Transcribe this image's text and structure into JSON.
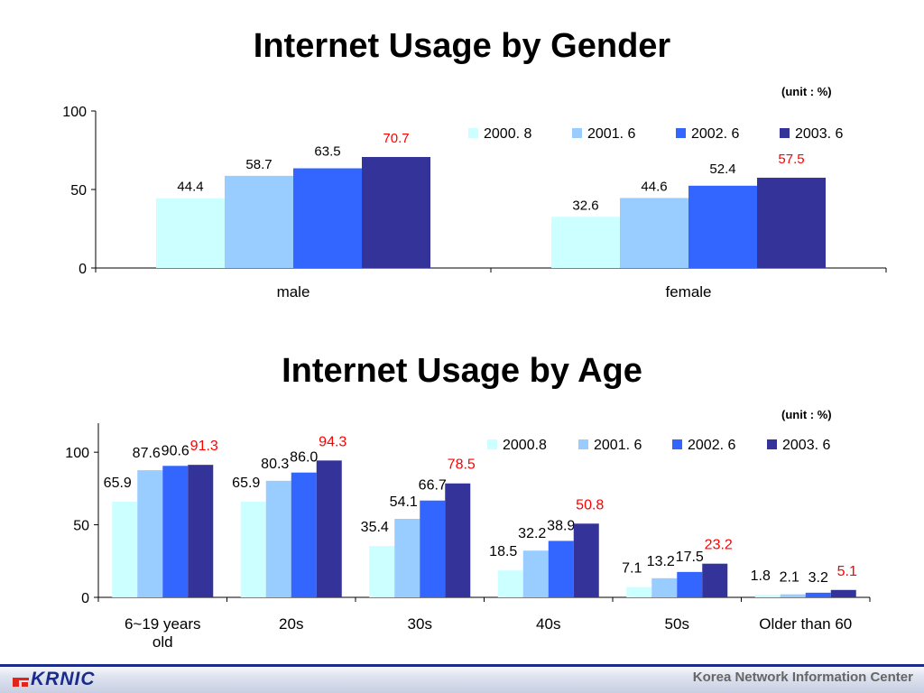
{
  "footer": {
    "logo_text": "KRNIC",
    "organization": "Korea Network Information Center"
  },
  "colors": {
    "series": [
      "#ccffff",
      "#99ccff",
      "#3366ff",
      "#333399"
    ],
    "highlight_label": "#ff0000"
  },
  "chart_data": [
    {
      "type": "bar",
      "title": "Internet Usage by Gender",
      "unit_note": "(unit : %)",
      "categories": [
        "male",
        "female"
      ],
      "series": [
        {
          "name": "2000. 8",
          "values": [
            44.4,
            32.6
          ]
        },
        {
          "name": "2001. 6",
          "values": [
            58.7,
            44.6
          ]
        },
        {
          "name": "2002. 6",
          "values": [
            63.5,
            52.4
          ]
        },
        {
          "name": "2003. 6",
          "values": [
            70.7,
            57.5
          ]
        }
      ],
      "yticks": [
        0,
        50,
        100
      ],
      "ylim": [
        0,
        100
      ],
      "xlabel": "",
      "ylabel": "",
      "grid": false,
      "legend_position": "top-right"
    },
    {
      "type": "bar",
      "title": "Internet Usage by Age",
      "unit_note": "(unit : %)",
      "categories": [
        "6~19 years old",
        "20s",
        "30s",
        "40s",
        "50s",
        "Older than 60"
      ],
      "series": [
        {
          "name": "2000.8",
          "values": [
            65.9,
            65.9,
            35.4,
            18.5,
            7.1,
            1.8
          ]
        },
        {
          "name": "2001. 6",
          "values": [
            87.6,
            80.3,
            54.1,
            32.2,
            13.2,
            2.1
          ]
        },
        {
          "name": "2002. 6",
          "values": [
            90.6,
            86.0,
            66.7,
            38.9,
            17.5,
            3.2
          ]
        },
        {
          "name": "2003. 6",
          "values": [
            91.3,
            94.3,
            78.5,
            50.8,
            23.2,
            5.1
          ]
        }
      ],
      "yticks": [
        0,
        50,
        100
      ],
      "ylim": [
        0,
        120
      ],
      "xlabel": "",
      "ylabel": "",
      "grid": false,
      "legend_position": "top-right"
    }
  ]
}
